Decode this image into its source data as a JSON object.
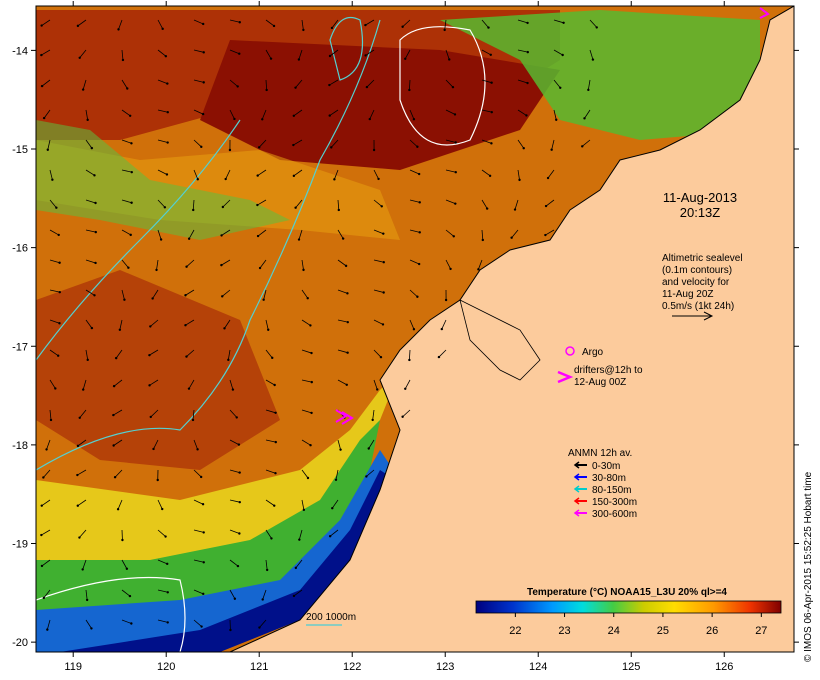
{
  "map": {
    "lon_range": [
      118.6,
      126.75
    ],
    "lat_range": [
      -20.1,
      -13.55
    ],
    "x_ticks": [
      "119",
      "120",
      "121",
      "122",
      "123",
      "124",
      "125",
      "126"
    ],
    "y_ticks": [
      "-14",
      "-15",
      "-16",
      "-17",
      "-18",
      "-19",
      "-20"
    ],
    "land_color": "#fccb9c",
    "sea_color": "#cc6a08"
  },
  "date": {
    "line1": "11-Aug-2013",
    "line2": "20:13Z"
  },
  "altimetry": {
    "lines": [
      "Altimetric sealevel",
      "(0.1m contours)",
      "and velocity for",
      "11-Aug 20Z",
      "0.5m/s (1kt 24h)"
    ]
  },
  "argo": {
    "label": "Argo",
    "color": "#ff00ff"
  },
  "drifters": {
    "lines": [
      "drifters@12h to",
      "12-Aug 00Z"
    ],
    "color": "#ff00ff"
  },
  "anmn": {
    "title": "ANMN 12h av.",
    "items": [
      {
        "label": "0-30m",
        "color": "#000000"
      },
      {
        "label": "30-80m",
        "color": "#0000ff"
      },
      {
        "label": "80-150m",
        "color": "#00cccc"
      },
      {
        "label": "150-300m",
        "color": "#ff0000"
      },
      {
        "label": "300-600m",
        "color": "#ff00ff"
      }
    ]
  },
  "isobath": {
    "label": "200  1000m",
    "color": "#66cccc"
  },
  "colorbar": {
    "title": "Temperature (°C) NOAA15_L3U 20% ql>=4",
    "ticks": [
      "22",
      "23",
      "24",
      "25",
      "26",
      "27"
    ]
  },
  "credit": "© IMOS 06-Apr-2015 15:52:25 Hobart time"
}
